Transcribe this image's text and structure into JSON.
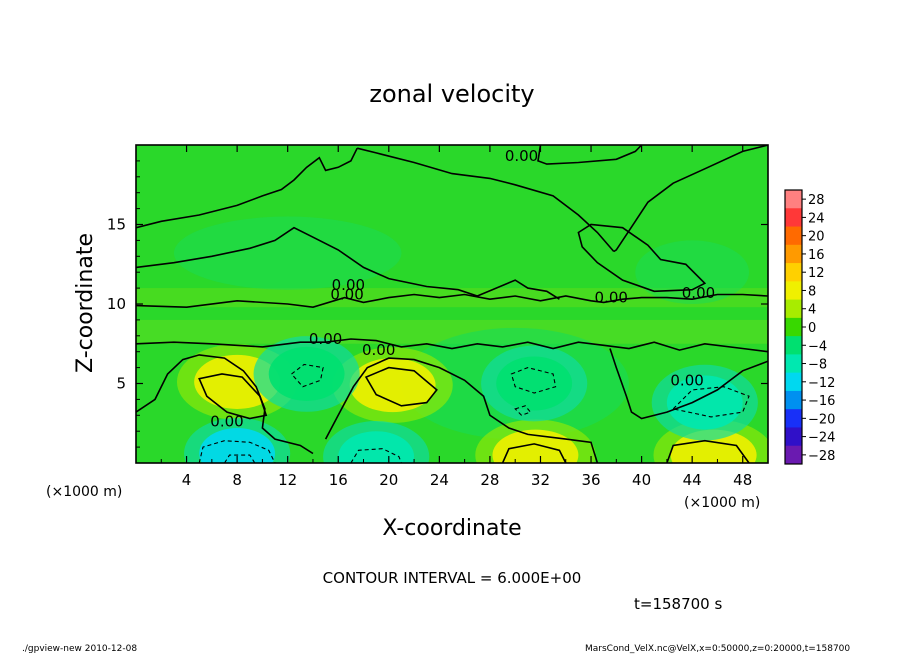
{
  "chart_data": {
    "type": "heatmap",
    "title": "zonal velocity",
    "xlabel": "X-coordinate",
    "ylabel": "Z-coordinate",
    "x_unit_label": "(×1000 m)",
    "y_unit_label": "(×1000 m)",
    "xlim": [
      0,
      50
    ],
    "ylim": [
      0,
      20
    ],
    "x_ticks": [
      4,
      8,
      12,
      16,
      20,
      24,
      28,
      32,
      36,
      40,
      44,
      48
    ],
    "y_ticks": [
      5,
      10,
      15
    ],
    "contour_interval_text": "CONTOUR INTERVAL = 6.000E+00",
    "time_text": "t=158700 s",
    "contour_labels": [
      "0.00",
      "0.00",
      "0.00",
      "0.00",
      "0.00",
      "0.00",
      "0.00",
      "0.00",
      "0.00"
    ],
    "colorbar": {
      "levels": [
        "28",
        "24",
        "20",
        "16",
        "12",
        "8",
        "4",
        "0",
        "−4",
        "−8",
        "−12",
        "−16",
        "−20",
        "−24",
        "−28"
      ],
      "colors": [
        "#ff8080",
        "#ff3838",
        "#ff6a00",
        "#ff9a00",
        "#ffd000",
        "#f0f000",
        "#a8ec00",
        "#38d800",
        "#00e070",
        "#00e8b0",
        "#00d8f0",
        "#0090f0",
        "#1830f8",
        "#3010c8",
        "#6a1ab0"
      ]
    },
    "features": [
      {
        "kind": "positive",
        "x": 8,
        "z": 5.1,
        "value": 8
      },
      {
        "kind": "positive",
        "x": 20.3,
        "z": 4.9,
        "value": 8
      },
      {
        "kind": "positive",
        "x": 45.7,
        "z": 0.5,
        "value": 8
      },
      {
        "kind": "positive",
        "x": 31.6,
        "z": 0.5,
        "value": 6
      },
      {
        "kind": "negative",
        "x": 8,
        "z": 0.6,
        "value": -12
      },
      {
        "kind": "negative",
        "x": 19,
        "z": 0.4,
        "value": -10
      },
      {
        "kind": "negative",
        "x": 45,
        "z": 3.8,
        "value": -10
      },
      {
        "kind": "negative",
        "x": 13.5,
        "z": 5.6,
        "value": -6
      },
      {
        "kind": "negative",
        "x": 31.5,
        "z": 5,
        "value": -6
      }
    ]
  },
  "footer": {
    "left": "./gpview-new  2010-12-08",
    "right": "MarsCond_VelX.nc@VelX,x=0:50000,z=0:20000,t=158700"
  }
}
